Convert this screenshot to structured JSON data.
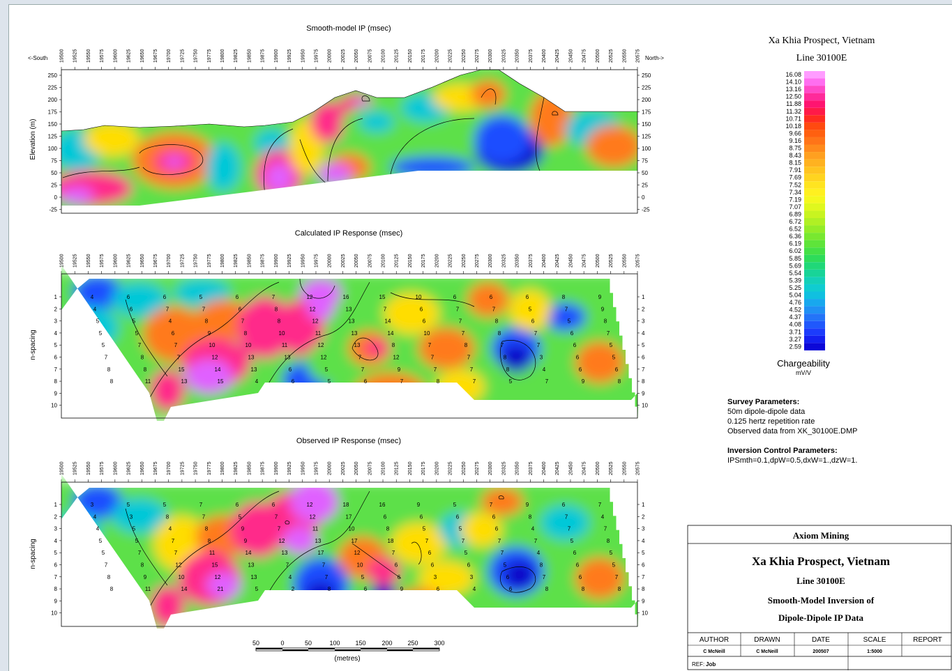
{
  "panels": [
    {
      "title": "Smooth-model IP (msec)",
      "ylabel": "Elevation (m)",
      "left_label": "<-South",
      "right_label": "North->",
      "yticks": [
        "250",
        "225",
        "200",
        "175",
        "150",
        "125",
        "100",
        "75",
        "50",
        "25",
        "0",
        "-25"
      ]
    },
    {
      "title": "Calculated IP Response (msec)",
      "ylabel": "n-spacing",
      "yticks": [
        "1",
        "2",
        "3",
        "4",
        "5",
        "6",
        "7",
        "8",
        "9",
        "10"
      ]
    },
    {
      "title": "Observed IP Response (msec)",
      "ylabel": "n-spacing",
      "yticks": [
        "1",
        "2",
        "3",
        "4",
        "5",
        "6",
        "7",
        "8",
        "9",
        "10"
      ]
    }
  ],
  "stations": [
    "19500",
    "19525",
    "19550",
    "19575",
    "19600",
    "19625",
    "19650",
    "19675",
    "19700",
    "19725",
    "19750",
    "19775",
    "19800",
    "19825",
    "19850",
    "19875",
    "19900",
    "19925",
    "19950",
    "19975",
    "20000",
    "20025",
    "20050",
    "20075",
    "20100",
    "20125",
    "20150",
    "20175",
    "20200",
    "20225",
    "20250",
    "20275",
    "20300",
    "20325",
    "20350",
    "20375",
    "20400",
    "20425",
    "20450",
    "20475",
    "20500",
    "20525",
    "20550",
    "20575"
  ],
  "chart_data": {
    "type": "heatmap",
    "colorbar": {
      "title": "Chargeability",
      "unit": "mV/V",
      "levels": [
        "16.08",
        "14.10",
        "13.16",
        "12.50",
        "11.88",
        "11.32",
        "10.71",
        "10.18",
        "9.66",
        "9.16",
        "8.75",
        "8.43",
        "8.15",
        "7.91",
        "7.69",
        "7.52",
        "7.34",
        "7.19",
        "7.07",
        "6.89",
        "6.72",
        "6.52",
        "6.36",
        "6.19",
        "6.02",
        "5.85",
        "5.69",
        "5.54",
        "5.39",
        "5.25",
        "5.04",
        "4.76",
        "4.52",
        "4.37",
        "4.08",
        "3.71",
        "3.27",
        "2.59"
      ]
    },
    "calculated_labels": [
      [
        0,
        1,
        "4"
      ],
      [
        1,
        1,
        "6"
      ],
      [
        2,
        1,
        "6"
      ],
      [
        3,
        1,
        "5"
      ],
      [
        4,
        1,
        "6"
      ],
      [
        5,
        1,
        "7"
      ],
      [
        6,
        1,
        "12"
      ],
      [
        7,
        1,
        "16"
      ],
      [
        8,
        1,
        "15"
      ],
      [
        9,
        1,
        "10"
      ],
      [
        10,
        1,
        "6"
      ],
      [
        11,
        1,
        "6"
      ],
      [
        12,
        1,
        "6"
      ],
      [
        13,
        1,
        "8"
      ],
      [
        14,
        1,
        "9"
      ],
      [
        0,
        2,
        "4"
      ],
      [
        1,
        2,
        "6"
      ],
      [
        2,
        2,
        "7"
      ],
      [
        3,
        2,
        "7"
      ],
      [
        4,
        2,
        "6"
      ],
      [
        5,
        2,
        "8"
      ],
      [
        6,
        2,
        "12"
      ],
      [
        7,
        2,
        "13"
      ],
      [
        8,
        2,
        "7"
      ],
      [
        9,
        2,
        "6"
      ],
      [
        10,
        2,
        "7"
      ],
      [
        11,
        2,
        "7"
      ],
      [
        12,
        2,
        "5"
      ],
      [
        13,
        2,
        "7"
      ],
      [
        14,
        2,
        "9"
      ],
      [
        0,
        3,
        "5"
      ],
      [
        1,
        3,
        "5"
      ],
      [
        2,
        3,
        "4"
      ],
      [
        3,
        3,
        "8"
      ],
      [
        4,
        3,
        "7"
      ],
      [
        5,
        3,
        "8"
      ],
      [
        6,
        3,
        "12"
      ],
      [
        7,
        3,
        "13"
      ],
      [
        8,
        3,
        "14"
      ],
      [
        9,
        3,
        "6"
      ],
      [
        10,
        3,
        "7"
      ],
      [
        11,
        3,
        "8"
      ],
      [
        12,
        3,
        "6"
      ],
      [
        13,
        3,
        "5"
      ],
      [
        14,
        3,
        "8"
      ],
      [
        0,
        4,
        "5"
      ],
      [
        1,
        4,
        "5"
      ],
      [
        2,
        4,
        "6"
      ],
      [
        3,
        4,
        "9"
      ],
      [
        4,
        4,
        "8"
      ],
      [
        5,
        4,
        "10"
      ],
      [
        6,
        4,
        "11"
      ],
      [
        7,
        4,
        "13"
      ],
      [
        8,
        4,
        "14"
      ],
      [
        9,
        4,
        "10"
      ],
      [
        10,
        4,
        "7"
      ],
      [
        11,
        4,
        "8"
      ],
      [
        12,
        4,
        "7"
      ],
      [
        13,
        4,
        "6"
      ],
      [
        14,
        4,
        "7"
      ],
      [
        0,
        5,
        "5"
      ],
      [
        1,
        5,
        "7"
      ],
      [
        2,
        5,
        "7"
      ],
      [
        3,
        5,
        "10"
      ],
      [
        4,
        5,
        "10"
      ],
      [
        5,
        5,
        "11"
      ],
      [
        6,
        5,
        "12"
      ],
      [
        7,
        5,
        "13"
      ],
      [
        8,
        5,
        "8"
      ],
      [
        9,
        5,
        "7"
      ],
      [
        10,
        5,
        "8"
      ],
      [
        11,
        5,
        "7"
      ],
      [
        12,
        5,
        "7"
      ],
      [
        13,
        5,
        "6"
      ],
      [
        14,
        5,
        "5"
      ],
      [
        0,
        6,
        "7"
      ],
      [
        1,
        6,
        "8"
      ],
      [
        2,
        6,
        "7"
      ],
      [
        3,
        6,
        "12"
      ],
      [
        4,
        6,
        "13"
      ],
      [
        5,
        6,
        "13"
      ],
      [
        6,
        6,
        "12"
      ],
      [
        7,
        6,
        "7"
      ],
      [
        8,
        6,
        "12"
      ],
      [
        9,
        6,
        "7"
      ],
      [
        10,
        6,
        "7"
      ],
      [
        11,
        6,
        "8"
      ],
      [
        12,
        6,
        "3"
      ],
      [
        13,
        6,
        "6"
      ],
      [
        14,
        6,
        "5"
      ],
      [
        0,
        7,
        "8"
      ],
      [
        1,
        7,
        "8"
      ],
      [
        2,
        7,
        "15"
      ],
      [
        3,
        7,
        "14"
      ],
      [
        4,
        7,
        "13"
      ],
      [
        5,
        7,
        "6"
      ],
      [
        6,
        7,
        "5"
      ],
      [
        7,
        7,
        "7"
      ],
      [
        8,
        7,
        "9"
      ],
      [
        9,
        7,
        "7"
      ],
      [
        10,
        7,
        "7"
      ],
      [
        11,
        7,
        "8"
      ],
      [
        12,
        7,
        "4"
      ],
      [
        13,
        7,
        "6"
      ],
      [
        14,
        7,
        "6"
      ],
      [
        0,
        8,
        "8"
      ],
      [
        1,
        8,
        "11"
      ],
      [
        2,
        8,
        "13"
      ],
      [
        3,
        8,
        "15"
      ],
      [
        4,
        8,
        "4"
      ],
      [
        5,
        8,
        "6"
      ],
      [
        6,
        8,
        "5"
      ],
      [
        7,
        8,
        "6"
      ],
      [
        8,
        8,
        "7"
      ],
      [
        9,
        8,
        "8"
      ],
      [
        10,
        8,
        "7"
      ],
      [
        11,
        8,
        "5"
      ],
      [
        12,
        8,
        "7"
      ],
      [
        13,
        8,
        "9"
      ],
      [
        14,
        8,
        "8"
      ]
    ],
    "observed_labels": [
      [
        0,
        1,
        "3"
      ],
      [
        1,
        1,
        "5"
      ],
      [
        2,
        1,
        "5"
      ],
      [
        3,
        1,
        "7"
      ],
      [
        4,
        1,
        "6"
      ],
      [
        5,
        1,
        "6"
      ],
      [
        6,
        1,
        "12"
      ],
      [
        7,
        1,
        "18"
      ],
      [
        8,
        1,
        "16"
      ],
      [
        9,
        1,
        "9"
      ],
      [
        10,
        1,
        "5"
      ],
      [
        11,
        1,
        "7"
      ],
      [
        12,
        1,
        "9"
      ],
      [
        13,
        1,
        "6"
      ],
      [
        14,
        1,
        "7"
      ],
      [
        0,
        2,
        "4"
      ],
      [
        1,
        2,
        "3"
      ],
      [
        2,
        2,
        "8"
      ],
      [
        3,
        2,
        "7"
      ],
      [
        4,
        2,
        "5"
      ],
      [
        5,
        2,
        "7"
      ],
      [
        6,
        2,
        "12"
      ],
      [
        7,
        2,
        "17"
      ],
      [
        8,
        2,
        "6"
      ],
      [
        9,
        2,
        "6"
      ],
      [
        10,
        2,
        "6"
      ],
      [
        11,
        2,
        "6"
      ],
      [
        12,
        2,
        "8"
      ],
      [
        13,
        2,
        "7"
      ],
      [
        14,
        2,
        "4"
      ],
      [
        0,
        3,
        "4"
      ],
      [
        1,
        3,
        "5"
      ],
      [
        2,
        3,
        "4"
      ],
      [
        3,
        3,
        "8"
      ],
      [
        4,
        3,
        "9"
      ],
      [
        5,
        3,
        "7"
      ],
      [
        6,
        3,
        "11"
      ],
      [
        7,
        3,
        "10"
      ],
      [
        8,
        3,
        "8"
      ],
      [
        9,
        3,
        "5"
      ],
      [
        10,
        3,
        "5"
      ],
      [
        11,
        3,
        "6"
      ],
      [
        12,
        3,
        "4"
      ],
      [
        13,
        3,
        "7"
      ],
      [
        14,
        3,
        "7"
      ],
      [
        0,
        4,
        "5"
      ],
      [
        1,
        4,
        "5"
      ],
      [
        2,
        4,
        "7"
      ],
      [
        3,
        4,
        "8"
      ],
      [
        4,
        4,
        "9"
      ],
      [
        5,
        4,
        "12"
      ],
      [
        6,
        4,
        "13"
      ],
      [
        7,
        4,
        "17"
      ],
      [
        8,
        4,
        "18"
      ],
      [
        9,
        4,
        "7"
      ],
      [
        10,
        4,
        "7"
      ],
      [
        11,
        4,
        "7"
      ],
      [
        12,
        4,
        "7"
      ],
      [
        13,
        4,
        "5"
      ],
      [
        14,
        4,
        "8"
      ],
      [
        0,
        5,
        "5"
      ],
      [
        1,
        5,
        "7"
      ],
      [
        2,
        5,
        "7"
      ],
      [
        3,
        5,
        "11"
      ],
      [
        4,
        5,
        "14"
      ],
      [
        5,
        5,
        "13"
      ],
      [
        6,
        5,
        "17"
      ],
      [
        7,
        5,
        "12"
      ],
      [
        8,
        5,
        "7"
      ],
      [
        9,
        5,
        "6"
      ],
      [
        10,
        5,
        "5"
      ],
      [
        11,
        5,
        "7"
      ],
      [
        12,
        5,
        "4"
      ],
      [
        13,
        5,
        "6"
      ],
      [
        14,
        5,
        "5"
      ],
      [
        0,
        6,
        "7"
      ],
      [
        1,
        6,
        "8"
      ],
      [
        2,
        6,
        "12"
      ],
      [
        3,
        6,
        "15"
      ],
      [
        4,
        6,
        "13"
      ],
      [
        5,
        6,
        "7"
      ],
      [
        6,
        6,
        "7"
      ],
      [
        7,
        6,
        "10"
      ],
      [
        8,
        6,
        "6"
      ],
      [
        9,
        6,
        "6"
      ],
      [
        10,
        6,
        "6"
      ],
      [
        11,
        6,
        "5"
      ],
      [
        12,
        6,
        "8"
      ],
      [
        13,
        6,
        "6"
      ],
      [
        14,
        6,
        "5"
      ],
      [
        0,
        7,
        "8"
      ],
      [
        1,
        7,
        "9"
      ],
      [
        2,
        7,
        "10"
      ],
      [
        3,
        7,
        "12"
      ],
      [
        4,
        7,
        "13"
      ],
      [
        5,
        7,
        "4"
      ],
      [
        6,
        7,
        "7"
      ],
      [
        7,
        7,
        "5"
      ],
      [
        8,
        7,
        "6"
      ],
      [
        9,
        7,
        "3"
      ],
      [
        10,
        7,
        "3"
      ],
      [
        11,
        7,
        "6"
      ],
      [
        12,
        7,
        "7"
      ],
      [
        13,
        7,
        "6"
      ],
      [
        14,
        7,
        "7"
      ],
      [
        0,
        8,
        "8"
      ],
      [
        1,
        8,
        "11"
      ],
      [
        2,
        8,
        "14"
      ],
      [
        3,
        8,
        "21"
      ],
      [
        4,
        8,
        "5"
      ],
      [
        5,
        8,
        "2"
      ],
      [
        6,
        8,
        "8"
      ],
      [
        7,
        8,
        "6"
      ],
      [
        8,
        8,
        "9"
      ],
      [
        9,
        8,
        "6"
      ],
      [
        10,
        8,
        "4"
      ],
      [
        11,
        8,
        "6"
      ],
      [
        12,
        8,
        "8"
      ],
      [
        13,
        8,
        "8"
      ],
      [
        14,
        8,
        "8"
      ]
    ]
  },
  "header": {
    "title": "Xa Khia Prospect, Vietnam",
    "subtitle": "Line 30100E"
  },
  "survey": {
    "heading": "Survey Parameters:",
    "lines": [
      "50m dipole-dipole data",
      "0.125 hertz repetition rate",
      "Observed data from XK_30100E.DMP"
    ]
  },
  "inversion": {
    "heading": "Inversion Control Parameters:",
    "line": "IPSmth=0.1,dpW=0.5,dxW=1.,dzW=1."
  },
  "scalebar": {
    "ticks": [
      "50",
      "0",
      "50",
      "100",
      "150",
      "200",
      "250",
      "300"
    ],
    "unit": "(metres)"
  },
  "titleblock": {
    "company": "Axiom Mining",
    "project": "Xa Khia Prospect, Vietnam",
    "line": "Line 30100E",
    "desc1": "Smooth-Model Inversion of",
    "desc2": "Dipole-Dipole IP Data",
    "cols": [
      "AUTHOR",
      "DRAWN",
      "DATE",
      "SCALE",
      "REPORT"
    ],
    "vals": [
      "C McNeill",
      "C McNeill",
      "200507",
      "1:5000",
      ""
    ],
    "ref_label": "REF:",
    "ref_value": "Job"
  },
  "colors": {
    "c1": "#e060ff",
    "c2": "#ff2a8a",
    "c3": "#ff7a1a",
    "c4": "#ffdd00",
    "c5": "#5de04a",
    "c6": "#00c8d8",
    "c7": "#1f4dff",
    "c8": "#0b00c8"
  }
}
